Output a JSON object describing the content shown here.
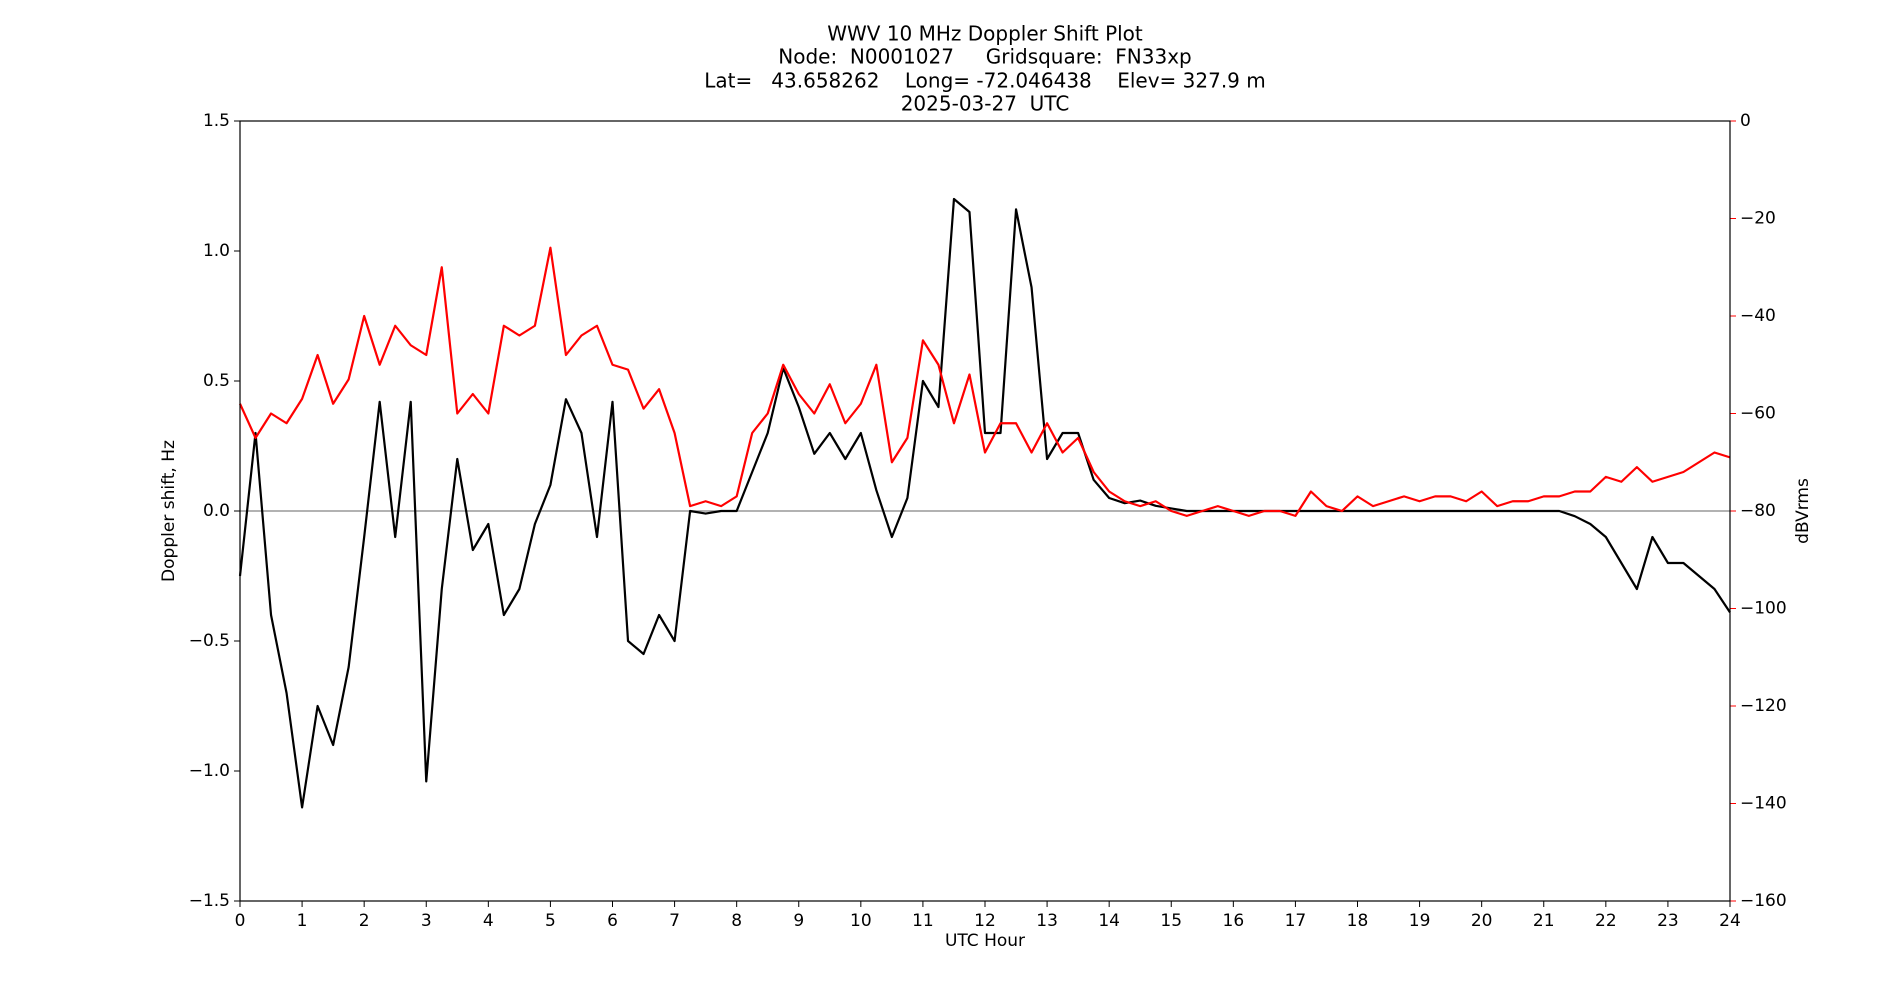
{
  "chart_data": {
    "type": "line",
    "title_lines": [
      "WWV 10 MHz Doppler Shift Plot",
      "Node:  N0001027     Gridsquare:  FN33xp",
      "Lat=   43.658262    Long= -72.046438    Elev= 327.9 m",
      "2025-03-27  UTC"
    ],
    "xlabel": "UTC Hour",
    "ylabel": "Doppler shift, Hz",
    "y2label": "dBVrms",
    "xlim": [
      0,
      24
    ],
    "xticks": [
      0,
      1,
      2,
      3,
      4,
      5,
      6,
      7,
      8,
      9,
      10,
      11,
      12,
      13,
      14,
      15,
      16,
      17,
      18,
      19,
      20,
      21,
      22,
      23,
      24
    ],
    "ylim": [
      -1.5,
      1.5
    ],
    "yticks": [
      {
        "value": -1.5,
        "label": "−1.5"
      },
      {
        "value": -1.0,
        "label": "−1.0"
      },
      {
        "value": -0.5,
        "label": "−0.5"
      },
      {
        "value": 0.0,
        "label": "0.0"
      },
      0.5,
      {
        "value": 1.0,
        "label": "1.0"
      },
      1.5
    ],
    "y2lim": [
      -160,
      0
    ],
    "y2ticks": [
      {
        "value": -160,
        "label": "−160"
      },
      {
        "value": -140,
        "label": "−140"
      },
      {
        "value": -120,
        "label": "−120"
      },
      {
        "value": -100,
        "label": "−100"
      },
      {
        "value": -80,
        "label": "−80"
      },
      {
        "value": -60,
        "label": "−60"
      },
      {
        "value": -40,
        "label": "−40"
      },
      {
        "value": -20,
        "label": "−20"
      },
      0
    ],
    "y2color": "#ff0000",
    "reference_line": 0,
    "x": [
      0,
      0.25,
      0.5,
      0.75,
      1,
      1.25,
      1.5,
      1.75,
      2,
      2.25,
      2.5,
      2.75,
      3,
      3.25,
      3.5,
      3.75,
      4,
      4.25,
      4.5,
      4.75,
      5,
      5.25,
      5.5,
      5.75,
      6,
      6.25,
      6.5,
      6.75,
      7,
      7.25,
      7.5,
      7.75,
      8,
      8.25,
      8.5,
      8.75,
      9,
      9.25,
      9.5,
      9.75,
      10,
      10.25,
      10.5,
      10.75,
      11,
      11.25,
      11.5,
      11.75,
      12,
      12.25,
      12.5,
      12.75,
      13,
      13.25,
      13.5,
      13.75,
      14,
      14.25,
      14.5,
      14.75,
      15,
      15.25,
      15.5,
      15.75,
      16,
      16.25,
      16.5,
      16.75,
      17,
      17.25,
      17.5,
      17.75,
      18,
      18.25,
      18.5,
      18.75,
      19,
      19.25,
      19.5,
      19.75,
      20,
      20.25,
      20.5,
      20.75,
      21,
      21.25,
      21.5,
      21.75,
      22,
      22.25,
      22.5,
      22.75,
      23,
      23.25,
      23.5,
      23.75,
      24
    ],
    "series": [
      {
        "color": "#000000",
        "axis": "y",
        "values": [
          -0.25,
          0.3,
          -0.4,
          -0.7,
          -1.14,
          -0.75,
          -0.9,
          -0.6,
          -0.1,
          0.42,
          -0.1,
          0.42,
          -1.04,
          -0.3,
          0.2,
          -0.15,
          -0.05,
          -0.4,
          -0.3,
          -0.05,
          0.1,
          0.43,
          0.3,
          -0.1,
          0.42,
          -0.5,
          -0.55,
          -0.4,
          -0.5,
          0,
          -0.01,
          0,
          0,
          0.15,
          0.3,
          0.55,
          0.4,
          0.22,
          0.3,
          0.2,
          0.3,
          0.08,
          -0.1,
          0.05,
          0.5,
          0.4,
          1.2,
          1.15,
          0.3,
          0.3,
          1.16,
          0.86,
          0.2,
          0.3,
          0.3,
          0.12,
          0.05,
          0.03,
          0.04,
          0.02,
          0.01,
          0,
          0,
          0,
          0,
          0,
          0,
          0,
          0,
          0,
          0,
          0,
          0,
          0,
          0,
          0,
          0,
          0,
          0,
          0,
          0,
          0,
          0,
          0,
          0,
          0,
          -0.02,
          -0.05,
          -0.1,
          -0.2,
          -0.3,
          -0.1,
          -0.2,
          -0.2,
          -0.25,
          -0.3,
          -0.39
        ]
      },
      {
        "color": "#ff0000",
        "axis": "y2",
        "values": [
          -58,
          -65,
          -60,
          -62,
          -57,
          -48,
          -58,
          -53,
          -40,
          -50,
          -42,
          -46,
          -48,
          -30,
          -60,
          -56,
          -60,
          -42,
          -44,
          -42,
          -26,
          -48,
          -44,
          -42,
          -50,
          -51,
          -59,
          -55,
          -64,
          -79,
          -78,
          -79,
          -77,
          -64,
          -60,
          -50,
          -56,
          -60,
          -54,
          -62,
          -58,
          -50,
          -70,
          -65,
          -45,
          -50,
          -62,
          -52,
          -68,
          -62,
          -62,
          -68,
          -62,
          -68,
          -65,
          -72,
          -76,
          -78,
          -79,
          -78,
          -80,
          -81,
          -80,
          -79,
          -80,
          -81,
          -80,
          -80,
          -81,
          -76,
          -79,
          -80,
          -77,
          -79,
          -78,
          -77,
          -78,
          -77,
          -77,
          -78,
          -76,
          -79,
          -78,
          -78,
          -77,
          -77,
          -76,
          -76,
          -73,
          -74,
          -71,
          -74,
          -73,
          -72,
          -70,
          -68,
          -69
        ]
      }
    ]
  }
}
